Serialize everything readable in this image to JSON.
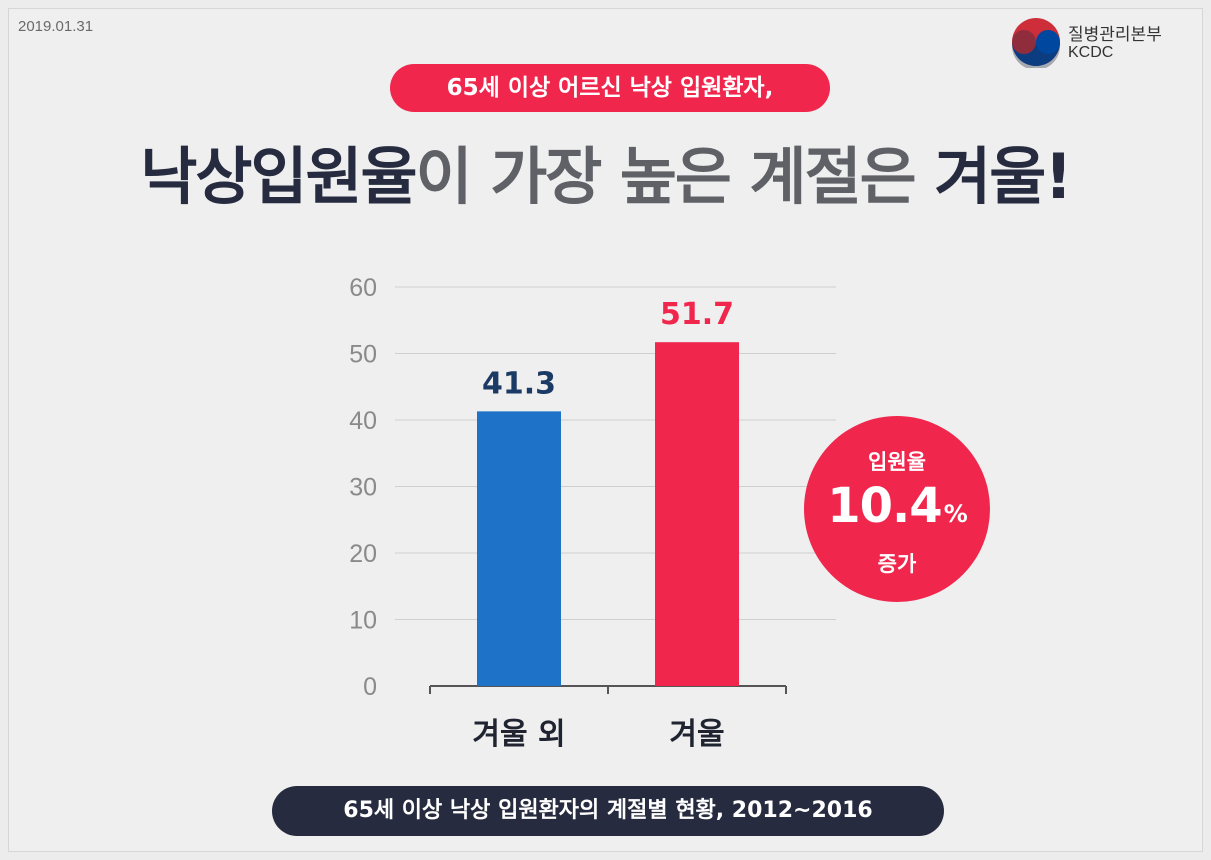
{
  "date": "2019.01.31",
  "logo": {
    "name_kr": "질병관리본부",
    "name_en": "KCDC",
    "icon": "taegeuk-emblem-icon",
    "colors": {
      "red": "#cd2e3a",
      "blue": "#0047a0",
      "navy": "#1f2a44"
    }
  },
  "subtitle": "65세 이상 어르신 낙상 입원환자,",
  "headline": {
    "part1": "낙상입원율",
    "part2": "이 가장 높은 계절은 ",
    "part3": "겨울!"
  },
  "badge": {
    "label": "입원율",
    "value": "10.4",
    "unit": "%",
    "suffix": "증가",
    "color": "#f0264d"
  },
  "caption": "65세 이상 낙상 입원환자의 계절별 현황, 2012~2016",
  "chart_data": {
    "type": "bar",
    "categories": [
      "겨울 외",
      "겨울"
    ],
    "values": [
      41.3,
      51.7
    ],
    "data_labels": [
      "41.3",
      "51.7"
    ],
    "colors": [
      "#1e73c9",
      "#f0264d"
    ],
    "label_colors": [
      "#1c3a66",
      "#f0264d"
    ],
    "yticks": [
      0,
      10,
      20,
      30,
      40,
      50,
      60
    ],
    "ylim": [
      0,
      60
    ],
    "grid": true,
    "title": "",
    "xlabel": "",
    "ylabel": ""
  }
}
